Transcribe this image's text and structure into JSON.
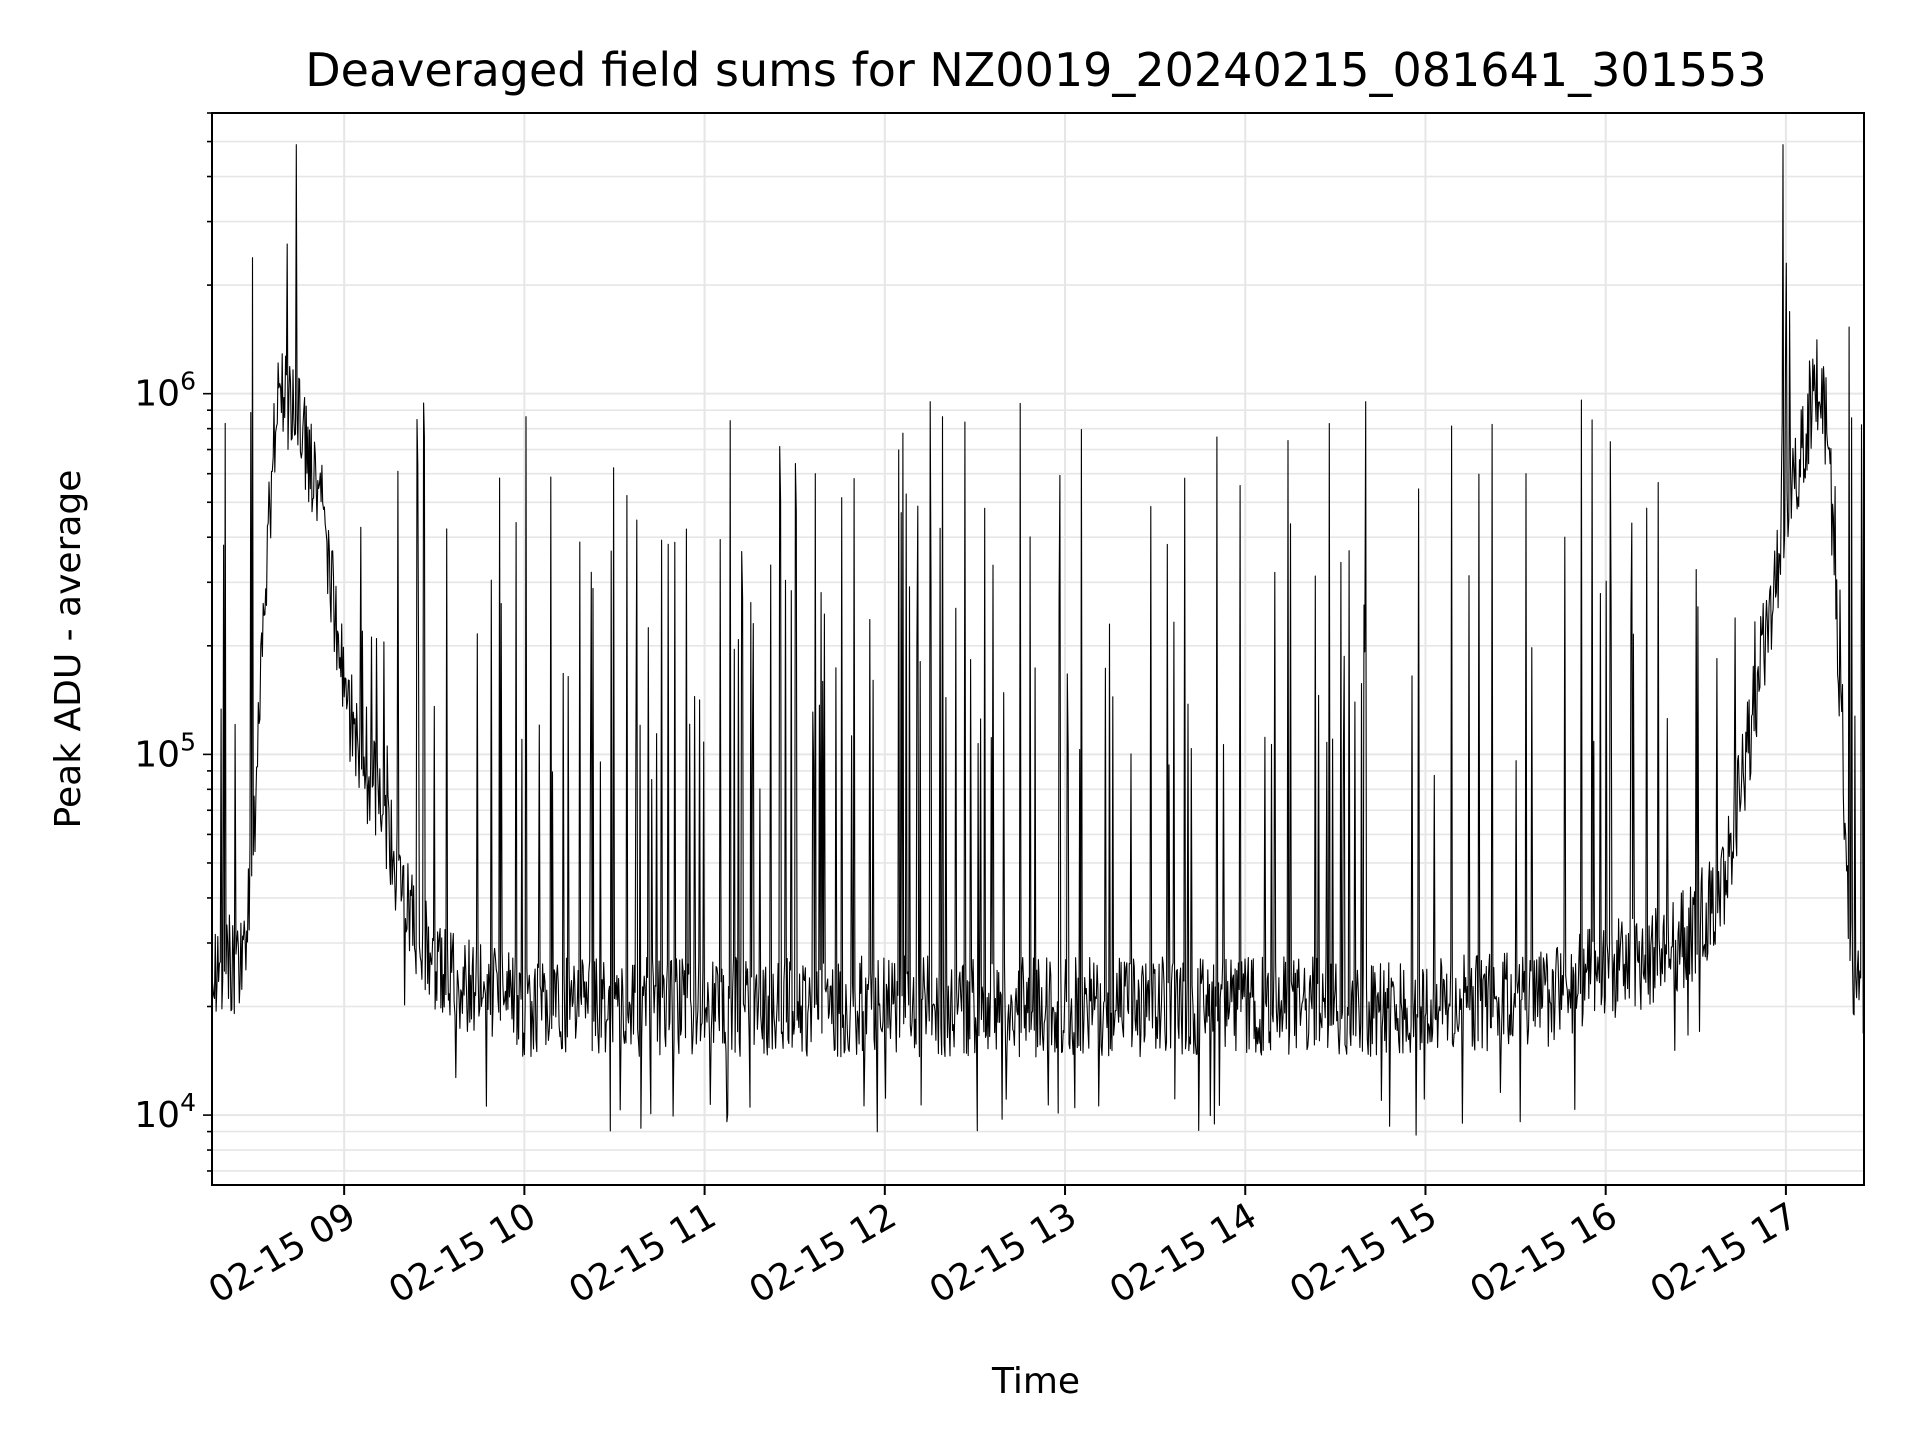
{
  "chart_data": {
    "type": "line",
    "title": "Deaveraged field sums for NZ0019_20240215_081641_301553",
    "xlabel": "Time",
    "ylabel": "Peak ADU - average",
    "x_tick_labels": [
      "02-15 09",
      "02-15 10",
      "02-15 11",
      "02-15 12",
      "02-15 13",
      "02-15 14",
      "02-15 15",
      "02-15 16",
      "02-15 17"
    ],
    "x_ticks": [
      "2024-02-15 09:00",
      "2024-02-15 10:00",
      "2024-02-15 11:00",
      "2024-02-15 12:00",
      "2024-02-15 13:00",
      "2024-02-15 14:00",
      "2024-02-15 15:00",
      "2024-02-15 16:00",
      "2024-02-15 17:00"
    ],
    "xlim": [
      "2024-02-15 08:16",
      "2024-02-15 17:26"
    ],
    "y_scale": "log",
    "y_tick_labels": [
      {
        "base": "10",
        "exp": "4",
        "value": 10000
      },
      {
        "base": "10",
        "exp": "5",
        "value": 100000
      },
      {
        "base": "10",
        "exp": "6",
        "value": 1000000
      }
    ],
    "ylim": [
      6400,
      6000000
    ],
    "grid": true,
    "line_color": "#000000",
    "grid_color": "#e6e6e6",
    "x": [
      "2024-02-15 08:16",
      "2024-02-15 08:20",
      "2024-02-15 08:26",
      "2024-02-15 08:30",
      "2024-02-15 08:34",
      "2024-02-15 08:38",
      "2024-02-15 08:42",
      "2024-02-15 08:45",
      "2024-02-15 08:48",
      "2024-02-15 08:52",
      "2024-02-15 08:56",
      "2024-02-15 09:00",
      "2024-02-15 09:05",
      "2024-02-15 09:10",
      "2024-02-15 09:15",
      "2024-02-15 09:20",
      "2024-02-15 09:30",
      "2024-02-15 10:00",
      "2024-02-15 11:00",
      "2024-02-15 12:00",
      "2024-02-15 13:00",
      "2024-02-15 14:00",
      "2024-02-15 15:00",
      "2024-02-15 15:40",
      "2024-02-15 16:00",
      "2024-02-15 16:20",
      "2024-02-15 16:30",
      "2024-02-15 16:40",
      "2024-02-15 16:45",
      "2024-02-15 16:50",
      "2024-02-15 16:55",
      "2024-02-15 17:00",
      "2024-02-15 17:05",
      "2024-02-15 17:10",
      "2024-02-15 17:14",
      "2024-02-15 17:18",
      "2024-02-15 17:22",
      "2024-02-15 17:26"
    ],
    "y": [
      24000,
      27000,
      25000,
      60000,
      300000,
      1100000,
      900000,
      800000,
      700000,
      500000,
      300000,
      150000,
      100000,
      80000,
      60000,
      40000,
      25000,
      20000,
      20000,
      20000,
      20000,
      20000,
      20000,
      21000,
      25000,
      28000,
      33000,
      45000,
      80000,
      150000,
      250000,
      400000,
      700000,
      1100000,
      800000,
      140000,
      24000,
      23000
    ],
    "peak_y": [
      2600000,
      4900000,
      950000,
      940000,
      950000,
      4900000,
      2300000
    ],
    "baseline_min": 8800
  }
}
